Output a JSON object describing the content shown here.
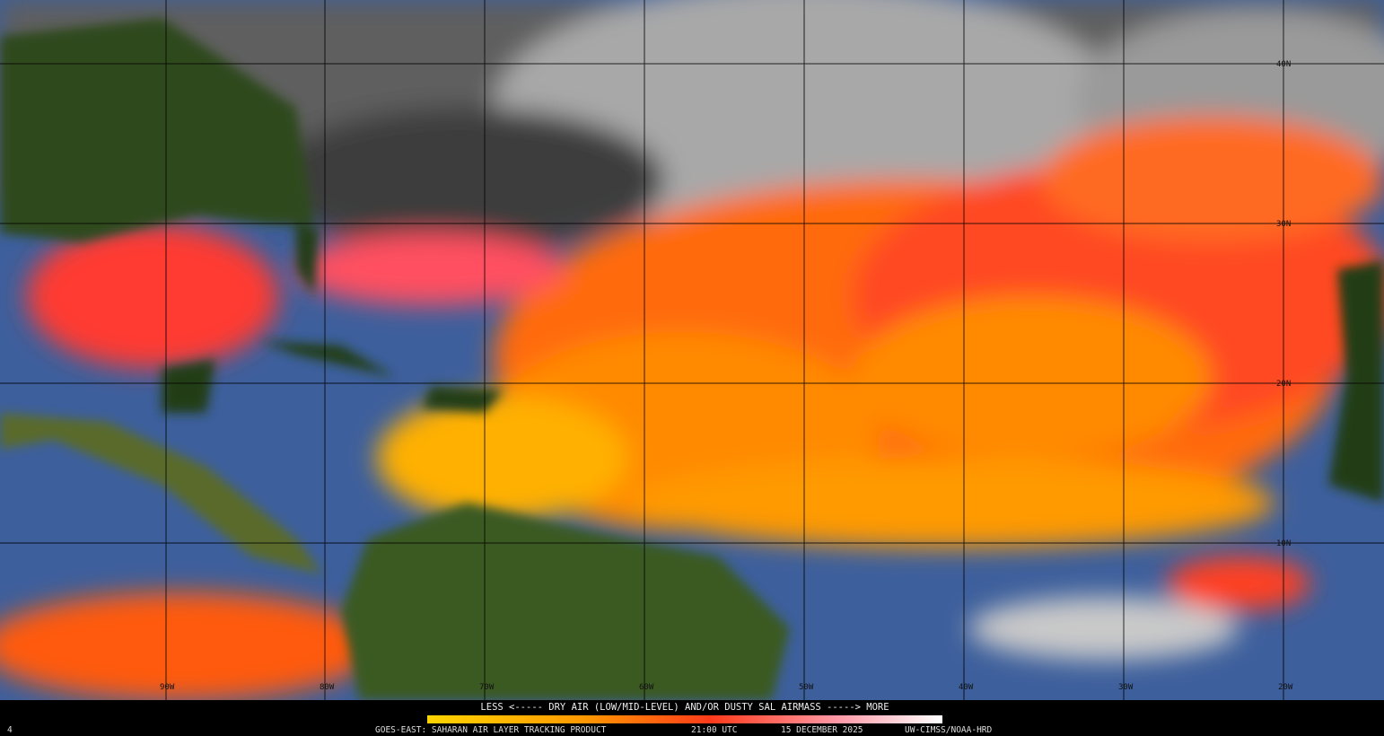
{
  "longitude_labels": [
    "90W",
    "80W",
    "70W",
    "60W",
    "50W",
    "40W",
    "30W",
    "20W"
  ],
  "latitude_labels": [
    "40N",
    "30N",
    "20N",
    "10N"
  ],
  "legend": {
    "text": "LESS <----- DRY AIR (LOW/MID-LEVEL) AND/OR DUSTY SAL AIRMASS -----> MORE"
  },
  "footer": {
    "frame": "4",
    "product": "GOES-EAST: SAHARAN AIR LAYER TRACKING PRODUCT",
    "time": "21:00 UTC",
    "date": "15 DECEMBER 2025",
    "credit": "UW-CIMSS/NOAA-HRD"
  }
}
